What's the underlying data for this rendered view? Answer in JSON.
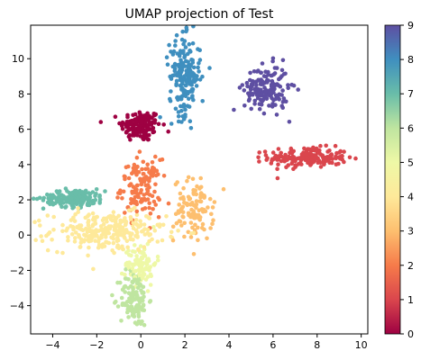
{
  "chart_data": {
    "type": "scatter",
    "title": "UMAP projection of Test",
    "xlabel": "",
    "ylabel": "",
    "xlim": [
      -5.0,
      10.3
    ],
    "ylim": [
      -5.6,
      11.9
    ],
    "x_ticks": [
      -4,
      -2,
      0,
      2,
      4,
      6,
      8,
      10
    ],
    "y_ticks": [
      -4,
      -2,
      0,
      2,
      4,
      6,
      8,
      10
    ],
    "grid": false,
    "colorbar": {
      "label": "",
      "range": [
        0,
        9
      ],
      "ticks": [
        0,
        1,
        2,
        3,
        4,
        5,
        6,
        7,
        8,
        9
      ],
      "colormap": "Spectral"
    },
    "cluster_colors": {
      "0": "#9e0142",
      "1": "#da464d",
      "2": "#f67b4a",
      "3": "#fdbf6f",
      "4": "#fee99a",
      "5": "#eef8a6",
      "6": "#bfe5a0",
      "7": "#69bda9",
      "8": "#3f8fbf",
      "9": "#5e4fa2"
    },
    "clusters": [
      {
        "label": 0,
        "center": [
          0.0,
          6.2
        ],
        "spread": [
          0.45,
          0.45
        ],
        "count": 150
      },
      {
        "label": 1,
        "center": [
          7.6,
          4.4
        ],
        "spread": [
          0.9,
          0.28
        ],
        "count": 190
      },
      {
        "label": 2,
        "center": [
          0.0,
          2.7
        ],
        "spread": [
          0.45,
          0.8
        ],
        "count": 130
      },
      {
        "label": 3,
        "center": [
          2.4,
          1.4
        ],
        "spread": [
          0.45,
          0.9
        ],
        "count": 110
      },
      {
        "label": 4,
        "center": [
          -1.5,
          0.2
        ],
        "spread": [
          1.3,
          0.55
        ],
        "count": 260
      },
      {
        "label": 5,
        "center": [
          0.0,
          -1.6
        ],
        "spread": [
          0.35,
          0.6
        ],
        "count": 90
      },
      {
        "label": 6,
        "center": [
          -0.3,
          -3.6
        ],
        "spread": [
          0.32,
          0.8
        ],
        "count": 130
      },
      {
        "label": 7,
        "center": [
          -3.0,
          2.1
        ],
        "spread": [
          0.7,
          0.25
        ],
        "count": 170
      },
      {
        "label": 8,
        "center": [
          2.0,
          9.0
        ],
        "spread": [
          0.35,
          1.1
        ],
        "count": 190
      },
      {
        "label": 9,
        "center": [
          5.7,
          8.3
        ],
        "spread": [
          0.5,
          0.65
        ],
        "count": 170
      }
    ]
  }
}
